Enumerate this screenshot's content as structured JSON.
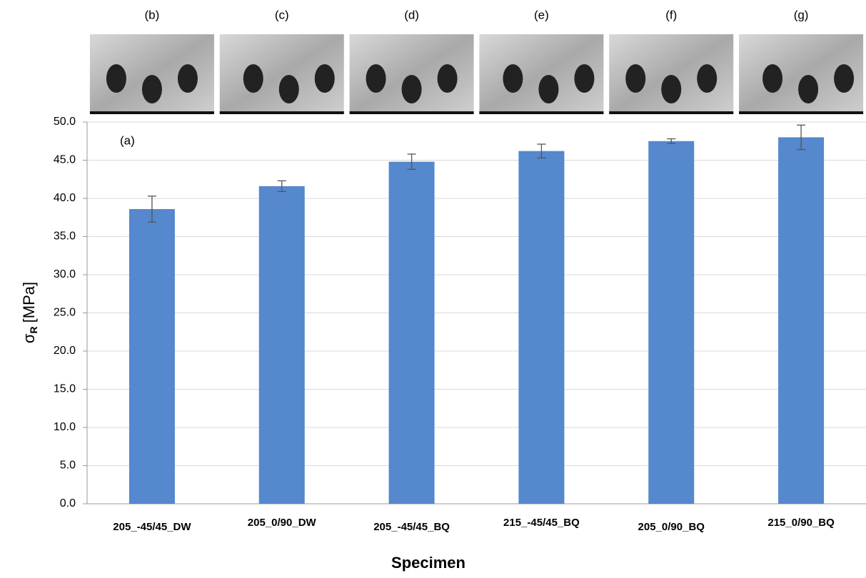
{
  "chart_data": {
    "type": "bar",
    "annotation": "(a)",
    "image_labels": [
      "(b)",
      "(c)",
      "(d)",
      "(e)",
      "(f)",
      "(g)"
    ],
    "x_label": "Specimen",
    "y_label": {
      "symbol": "σ",
      "subscript": "R",
      "unit": "[MPa]"
    },
    "categories": [
      "205_-45/45_DW",
      "205_0/90_DW",
      "205_-45/45_BQ",
      "215_-45/45_BQ",
      "205_0/90_BQ",
      "215_0/90_BQ"
    ],
    "values": [
      38.6,
      41.6,
      44.8,
      46.2,
      47.5,
      48.0
    ],
    "errors": [
      1.7,
      0.7,
      1.0,
      0.9,
      0.3,
      1.6
    ],
    "color": "#5588cc",
    "ylim": [
      0,
      50
    ],
    "yticks": [
      {
        "value": 0,
        "label": "0.0"
      },
      {
        "value": 5,
        "label": "5.0"
      },
      {
        "value": 10,
        "label": "10.0"
      },
      {
        "value": 15,
        "label": "15.0"
      },
      {
        "value": 20,
        "label": "20.0"
      },
      {
        "value": 25,
        "label": "25.0"
      },
      {
        "value": 30,
        "label": "30.0"
      },
      {
        "value": 35,
        "label": "35.0"
      },
      {
        "value": 40,
        "label": "40.0"
      },
      {
        "value": 45,
        "label": "45.0"
      },
      {
        "value": 50,
        "label": "50.0"
      }
    ],
    "grid": true
  }
}
